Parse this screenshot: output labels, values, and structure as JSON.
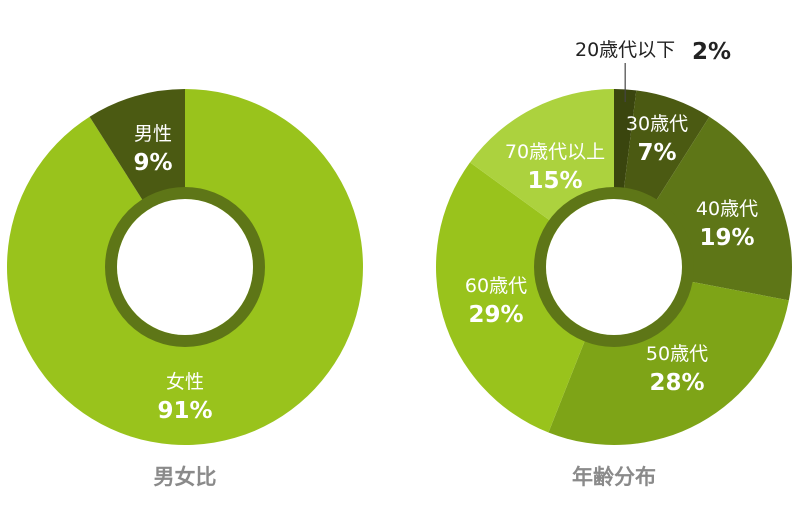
{
  "chart_data": [
    {
      "type": "pie",
      "donut": true,
      "title": "男女比",
      "slices": [
        {
          "name": "女性",
          "value": 91,
          "label": "91%",
          "color": "#99c31c"
        },
        {
          "name": "男性",
          "value": 9,
          "label": "9%",
          "color": "#4b5a12"
        }
      ]
    },
    {
      "type": "pie",
      "donut": true,
      "title": "年齢分布",
      "slices": [
        {
          "name": "20歳代以下",
          "value": 2,
          "label": "2%",
          "color": "#3a450e",
          "label_outside": true
        },
        {
          "name": "30歳代",
          "value": 7,
          "label": "7%",
          "color": "#4b5a12"
        },
        {
          "name": "40歳代",
          "value": 19,
          "label": "19%",
          "color": "#5e7617"
        },
        {
          "name": "50歳代",
          "value": 28,
          "label": "28%",
          "color": "#7ea417"
        },
        {
          "name": "60歳代",
          "value": 29,
          "label": "29%",
          "color": "#99c31c"
        },
        {
          "name": "70歳代以上",
          "value": 15,
          "label": "15%",
          "color": "#acd23e"
        }
      ]
    }
  ],
  "ring_color": "#5e7617"
}
